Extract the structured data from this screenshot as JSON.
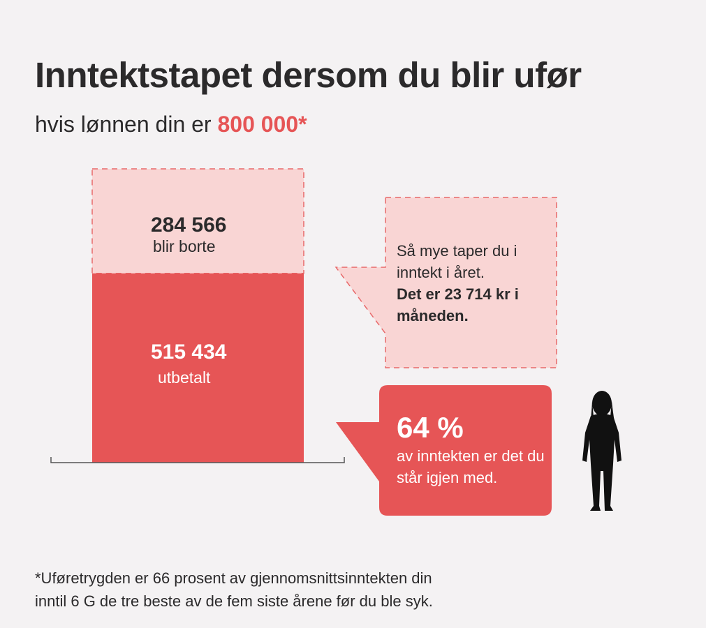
{
  "title": "Inntektstapet dersom du blir ufør",
  "subtitle": {
    "prefix": "hvis lønnen din er ",
    "salary": "800 000",
    "asterisk": "*"
  },
  "colors": {
    "background": "#f4f2f3",
    "red": "#e65556",
    "pink": "#f9d5d4",
    "text": "#2b2a2b"
  },
  "chart_data": {
    "type": "bar",
    "stacked": true,
    "total": 800000,
    "segments": [
      {
        "value": 515434,
        "number_label": "515 434",
        "label": "utbetalt",
        "color": "#e65556"
      },
      {
        "value": 284566,
        "number_label": "284 566",
        "label": "blir borte",
        "color": "#f9d5d4",
        "dashed": true
      }
    ]
  },
  "callout_loss": {
    "line1": "Så mye taper du i inntekt i året.",
    "line2": "Det er 23 714 kr i måneden."
  },
  "callout_percent": {
    "value": "64 %",
    "text": "av inntekten er det du står igjen med."
  },
  "figure_icon": "person-silhouette-icon",
  "footnote": {
    "line1": "*Uføretrygden er 66 prosent av gjennomsnittsinntekten din",
    "line2": "inntil 6 G de tre beste av de fem siste årene før du ble syk."
  }
}
